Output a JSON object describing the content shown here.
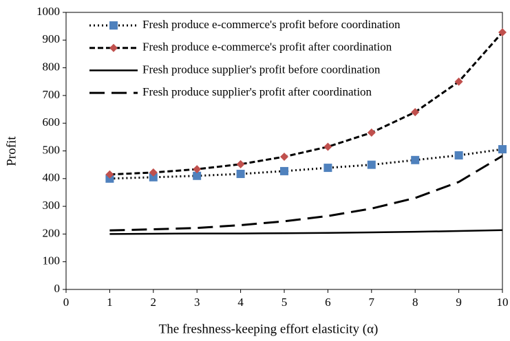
{
  "chart_data": {
    "type": "line",
    "x_label": "The freshness-keeping effort elasticity (α)",
    "y_label": "Profit",
    "x": [
      1,
      2,
      3,
      4,
      5,
      6,
      7,
      8,
      9,
      10
    ],
    "xlim": [
      0,
      10
    ],
    "xticks": [
      0,
      1,
      2,
      3,
      4,
      5,
      6,
      7,
      8,
      9,
      10
    ],
    "ylim": [
      0,
      1000
    ],
    "yticks": [
      0,
      100,
      200,
      300,
      400,
      500,
      600,
      700,
      800,
      900,
      1000
    ],
    "legend": "upper left",
    "series": [
      {
        "name": "Fresh produce e-commerce's profit before coordination",
        "color": "#000000",
        "line_style": "dotted",
        "marker": "square",
        "marker_color": "#4f81bd",
        "values": [
          400,
          405,
          410,
          417,
          427,
          439,
          450,
          467,
          484,
          506
        ]
      },
      {
        "name": "Fresh produce e-commerce's profit after coordination",
        "color": "#000000",
        "line_style": "dashed",
        "marker": "diamond",
        "marker_color": "#c0504d",
        "values": [
          415,
          422,
          434,
          452,
          479,
          515,
          566,
          640,
          750,
          928
        ]
      },
      {
        "name": "Fresh produce supplier's profit before coordination",
        "color": "#000000",
        "line_style": "solid",
        "values": [
          200,
          201,
          202,
          202,
          203,
          204,
          206,
          208,
          211,
          214
        ]
      },
      {
        "name": "Fresh produce supplier's profit after coordination",
        "color": "#000000",
        "line_style": "longdash",
        "values": [
          213,
          217,
          222,
          232,
          246,
          265,
          292,
          330,
          388,
          482
        ]
      }
    ]
  }
}
